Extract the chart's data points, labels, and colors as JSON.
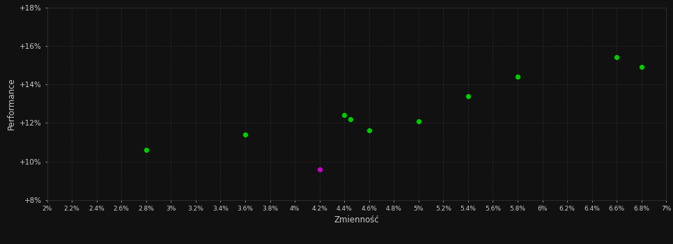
{
  "xlabel": "Zmienność",
  "ylabel": "Performance",
  "bg_color": "#111111",
  "grid_color": "#2a2a2a",
  "text_color": "#cccccc",
  "xlim": [
    0.02,
    0.07
  ],
  "ylim": [
    0.08,
    0.18
  ],
  "green_points": [
    [
      0.028,
      0.106
    ],
    [
      0.036,
      0.114
    ],
    [
      0.044,
      0.124
    ],
    [
      0.0445,
      0.122
    ],
    [
      0.046,
      0.116
    ],
    [
      0.05,
      0.121
    ],
    [
      0.054,
      0.134
    ],
    [
      0.058,
      0.144
    ],
    [
      0.066,
      0.154
    ],
    [
      0.068,
      0.149
    ]
  ],
  "magenta_points": [
    [
      0.042,
      0.096
    ]
  ],
  "point_size": 18,
  "green_color": "#00cc00",
  "magenta_color": "#cc00cc",
  "ytick_vals": [
    0.08,
    0.1,
    0.12,
    0.14,
    0.16,
    0.18
  ],
  "ytick_labels": [
    "+8%",
    "+10%",
    "+12%",
    "+14%",
    "+16%",
    "+18%"
  ],
  "xtick_vals": [
    0.02,
    0.022,
    0.024,
    0.026,
    0.028,
    0.03,
    0.032,
    0.034,
    0.036,
    0.038,
    0.04,
    0.042,
    0.044,
    0.046,
    0.048,
    0.05,
    0.052,
    0.054,
    0.056,
    0.058,
    0.06,
    0.062,
    0.064,
    0.066,
    0.068,
    0.07
  ],
  "xtick_labels": [
    "2%",
    "2.2%",
    "2.4%",
    "2.6%",
    "2.8%",
    "3%",
    "3.2%",
    "3.4%",
    "3.6%",
    "3.8%",
    "4%",
    "4.2%",
    "4.4%",
    "4.6%",
    "4.8%",
    "5%",
    "5.2%",
    "5.4%",
    "5.6%",
    "5.8%",
    "6%",
    "6.2%",
    "6.4%",
    "6.6%",
    "6.8%",
    "7%"
  ]
}
